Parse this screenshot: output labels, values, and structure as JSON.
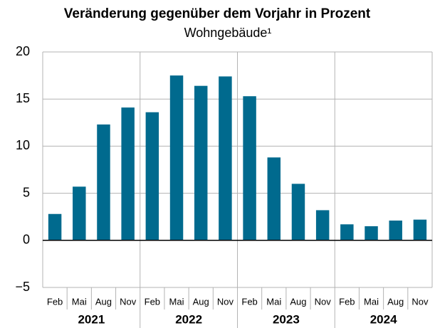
{
  "chart_data": {
    "type": "bar",
    "title": "Veränderung gegenüber dem Vorjahr in Prozent",
    "subtitle": "Wohngebäude¹",
    "categories": [
      "Feb",
      "Mai",
      "Aug",
      "Nov",
      "Feb",
      "Mai",
      "Aug",
      "Nov",
      "Feb",
      "Mai",
      "Aug",
      "Nov",
      "Feb",
      "Mai",
      "Aug",
      "Nov"
    ],
    "year_labels": [
      "2021",
      "2022",
      "2023",
      "2024"
    ],
    "values": [
      2.8,
      5.7,
      12.3,
      14.1,
      13.6,
      17.5,
      16.4,
      17.4,
      15.3,
      8.8,
      6.0,
      3.2,
      1.7,
      1.5,
      2.1,
      2.2
    ],
    "color": "#006a8e",
    "ylim": [
      -5,
      20
    ],
    "yticks": [
      {
        "value": -5,
        "label": "−5"
      },
      0,
      5,
      10,
      15,
      20
    ],
    "grid": true
  }
}
